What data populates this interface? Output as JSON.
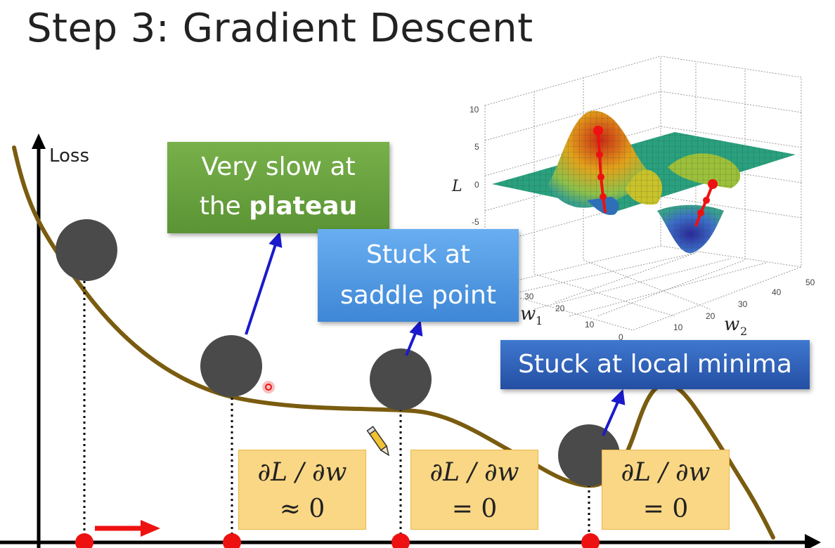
{
  "title": "Step 3: Gradient Descent",
  "axis": {
    "y_label": "Loss"
  },
  "callouts": {
    "plateau_line1": "Very slow at",
    "plateau_prefix": "the ",
    "plateau_bold": "plateau",
    "saddle_line1": "Stuck at",
    "saddle_line2": "saddle point",
    "local": "Stuck at local minima"
  },
  "derivatives": [
    {
      "expr": "∂L / ∂w",
      "relation": "≈ 0"
    },
    {
      "expr": "∂L / ∂w",
      "relation": "= 0"
    },
    {
      "expr": "∂L / ∂w",
      "relation": "= 0"
    }
  ],
  "surface_plot": {
    "z_label": "L",
    "x_label": "w",
    "x_sub": "1",
    "y_label": "w",
    "y_sub": "2",
    "z_ticks": [
      "10",
      "5",
      "0",
      "-5"
    ],
    "w1_ticks": [
      "30",
      "20",
      "10"
    ],
    "w2_ticks": [
      "10",
      "20",
      "30",
      "40",
      "50"
    ],
    "origin_tick": "0"
  },
  "colors": {
    "curve": "#7a5c10",
    "ball": "#4a4a4a",
    "arrow": "#1a1acc",
    "marker": "#ee1111",
    "green": "#5a9434",
    "blue": "#3e87d6",
    "navy": "#244fa3",
    "deriv_fill": "#fad784"
  }
}
